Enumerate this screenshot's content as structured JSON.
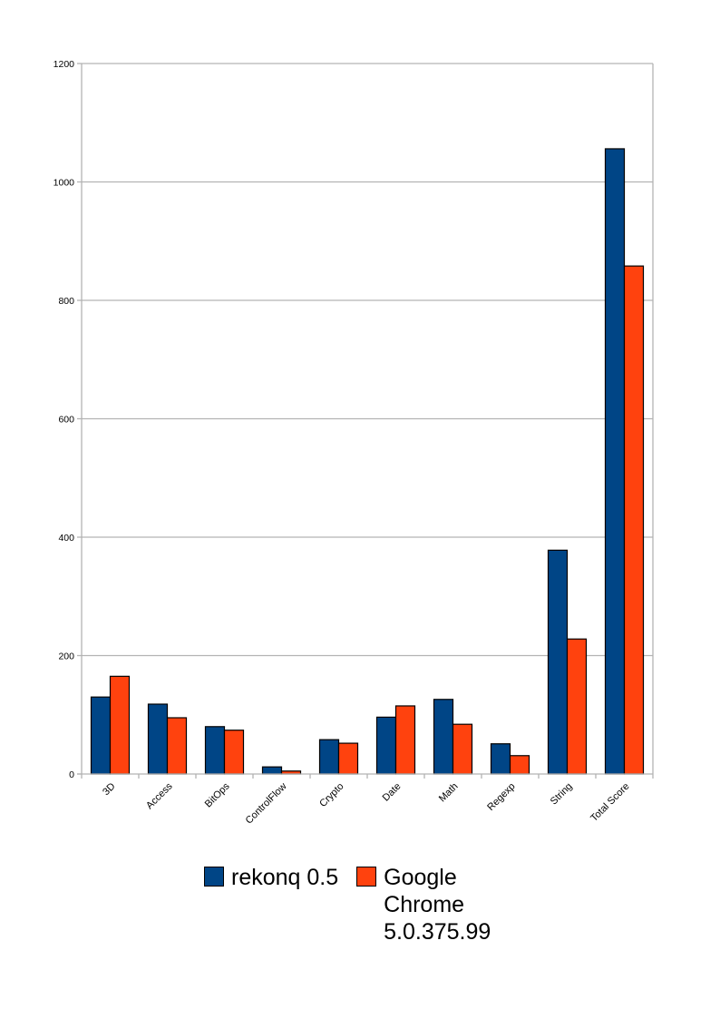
{
  "chart_data": {
    "type": "bar",
    "title": "",
    "xlabel": "",
    "ylabel": "",
    "ylim": [
      0,
      1200
    ],
    "yticks": [
      0,
      200,
      400,
      600,
      800,
      1000,
      1200
    ],
    "grid": true,
    "legend_position": "bottom",
    "categories": [
      "3D",
      "Access",
      "BitOps",
      "ControlFlow",
      "Crypto",
      "Date",
      "Math",
      "Regexp",
      "String",
      "Total Score"
    ],
    "series": [
      {
        "name": "rekonq 0.5",
        "color": "#004586",
        "values": [
          130,
          118,
          80,
          12,
          58,
          96,
          126,
          51,
          378,
          1056
        ]
      },
      {
        "name": "Google Chrome 5.0.375.99",
        "color": "#ff420e",
        "values": [
          165,
          95,
          74,
          5,
          52,
          115,
          84,
          31,
          228,
          858
        ]
      }
    ]
  }
}
